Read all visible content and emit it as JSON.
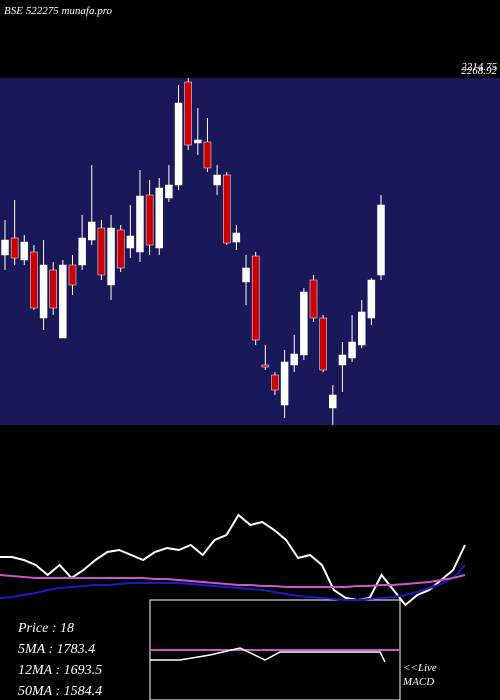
{
  "chart_data": {
    "type": "candlestick",
    "title": "BSE 522275 munafa.pro",
    "price_labels": [
      "2214.75",
      "2268.92"
    ],
    "ylim": [
      1225,
      2266
    ],
    "up_color": "#ffffff",
    "down_color": "#cc0000",
    "candles": [
      [
        1735,
        1840,
        1690,
        1780
      ],
      [
        1786,
        1900,
        1705,
        1726
      ],
      [
        1720,
        1795,
        1705,
        1774
      ],
      [
        1744,
        1765,
        1570,
        1576
      ],
      [
        1546,
        1780,
        1510,
        1705
      ],
      [
        1690,
        1714,
        1555,
        1576
      ],
      [
        1486,
        1720,
        1486,
        1705
      ],
      [
        1705,
        1735,
        1615,
        1645
      ],
      [
        1705,
        1855,
        1690,
        1786
      ],
      [
        1780,
        2005,
        1765,
        1834
      ],
      [
        1816,
        1840,
        1660,
        1675
      ],
      [
        1645,
        1855,
        1600,
        1816
      ],
      [
        1810,
        1825,
        1684,
        1696
      ],
      [
        1756,
        1885,
        1726,
        1792
      ],
      [
        1744,
        1990,
        1714,
        1912
      ],
      [
        1915,
        1960,
        1735,
        1765
      ],
      [
        1756,
        1966,
        1735,
        1936
      ],
      [
        1906,
        2005,
        1894,
        1945
      ],
      [
        1945,
        2245,
        1930,
        2191
      ],
      [
        2254,
        2266,
        2050,
        2065
      ],
      [
        2071,
        2176,
        2035,
        2080
      ],
      [
        2074,
        2146,
        1984,
        1996
      ],
      [
        1945,
        2005,
        1915,
        1975
      ],
      [
        1975,
        1984,
        1765,
        1771
      ],
      [
        1774,
        1825,
        1750,
        1801
      ],
      [
        1654,
        1735,
        1585,
        1696
      ],
      [
        1732,
        1744,
        1465,
        1480
      ],
      [
        1405,
        1465,
        1390,
        1399
      ],
      [
        1375,
        1384,
        1315,
        1330
      ],
      [
        1285,
        1450,
        1246,
        1414
      ],
      [
        1405,
        1495,
        1384,
        1438
      ],
      [
        1435,
        1636,
        1420,
        1624
      ],
      [
        1660,
        1675,
        1534,
        1546
      ],
      [
        1546,
        1555,
        1384,
        1390
      ],
      [
        1276,
        1345,
        1225,
        1315
      ],
      [
        1405,
        1474,
        1324,
        1435
      ],
      [
        1426,
        1555,
        1414,
        1474
      ],
      [
        1465,
        1600,
        1456,
        1564
      ],
      [
        1546,
        1666,
        1525,
        1660
      ],
      [
        1675,
        1915,
        1660,
        1885
      ]
    ],
    "indicator": {
      "ylim": [
        0,
        110
      ],
      "series": [
        {
          "color": "#ffffff",
          "values": [
            53,
            53,
            50,
            45,
            35,
            45,
            32,
            40,
            50,
            58,
            60,
            55,
            50,
            58,
            62,
            60,
            65,
            55,
            70,
            75,
            95,
            85,
            88,
            80,
            70,
            52,
            55,
            45,
            20,
            12,
            10,
            12,
            35,
            20,
            5,
            15,
            20,
            30,
            40,
            65
          ]
        },
        {
          "color": "#1a1acc",
          "values": [
            12,
            13,
            15,
            17,
            20,
            22,
            23,
            24,
            25,
            25,
            26,
            27,
            27,
            27,
            27,
            27,
            26,
            25,
            24,
            23,
            22,
            21,
            20,
            18,
            16,
            14,
            13,
            12,
            11,
            10,
            10,
            11,
            12,
            13,
            15,
            18,
            22,
            26,
            32,
            45
          ]
        },
        {
          "color": "#cc55cc",
          "values": [
            35,
            34,
            33,
            32,
            32,
            32,
            32,
            32,
            32,
            32,
            32,
            32,
            32,
            31,
            31,
            30,
            29,
            28,
            27,
            26,
            25,
            25,
            24,
            24,
            23,
            23,
            23,
            23,
            23,
            23,
            24,
            24,
            25,
            25,
            26,
            27,
            28,
            30,
            32,
            35
          ]
        }
      ]
    },
    "stats": [
      "Price   : 18",
      "5MA : 1783.4",
      "12MA : 1693.5",
      "50MA : 1584.4"
    ],
    "macd_label": [
      "<<Live",
      "MACD"
    ]
  }
}
